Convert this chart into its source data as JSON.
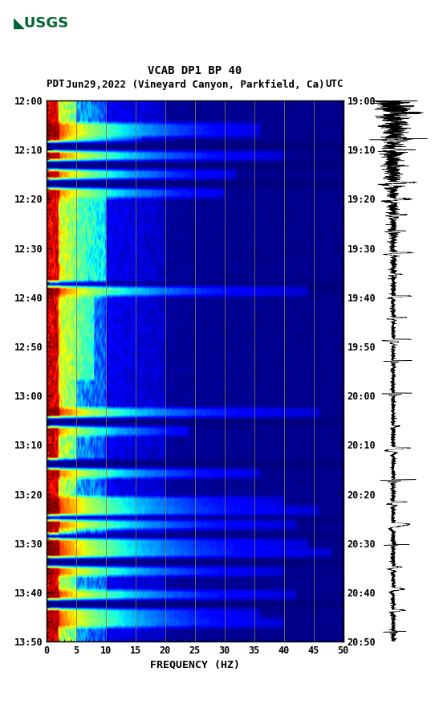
{
  "title_line1": "VCAB DP1 BP 40",
  "title_line2_left": "PDT",
  "title_line2_mid": "Jun29,2022 (Vineyard Canyon, Parkfield, Ca)",
  "title_line2_right": "UTC",
  "xlabel": "FREQUENCY (HZ)",
  "freq_min": 0,
  "freq_max": 50,
  "ytick_pdt": [
    "12:00",
    "12:10",
    "12:20",
    "12:30",
    "12:40",
    "12:50",
    "13:00",
    "13:10",
    "13:20",
    "13:30",
    "13:40",
    "13:50"
  ],
  "ytick_utc": [
    "19:00",
    "19:10",
    "19:20",
    "19:30",
    "19:40",
    "19:50",
    "20:00",
    "20:10",
    "20:20",
    "20:30",
    "20:40",
    "20:50"
  ],
  "xticks": [
    0,
    5,
    10,
    15,
    20,
    25,
    30,
    35,
    40,
    45,
    50
  ],
  "vline_freqs": [
    5,
    10,
    15,
    20,
    25,
    30,
    35,
    40,
    45
  ],
  "vline_color": "#807858",
  "bg_color": "#ffffff",
  "n_time": 116,
  "n_freq": 250,
  "seed": 42
}
